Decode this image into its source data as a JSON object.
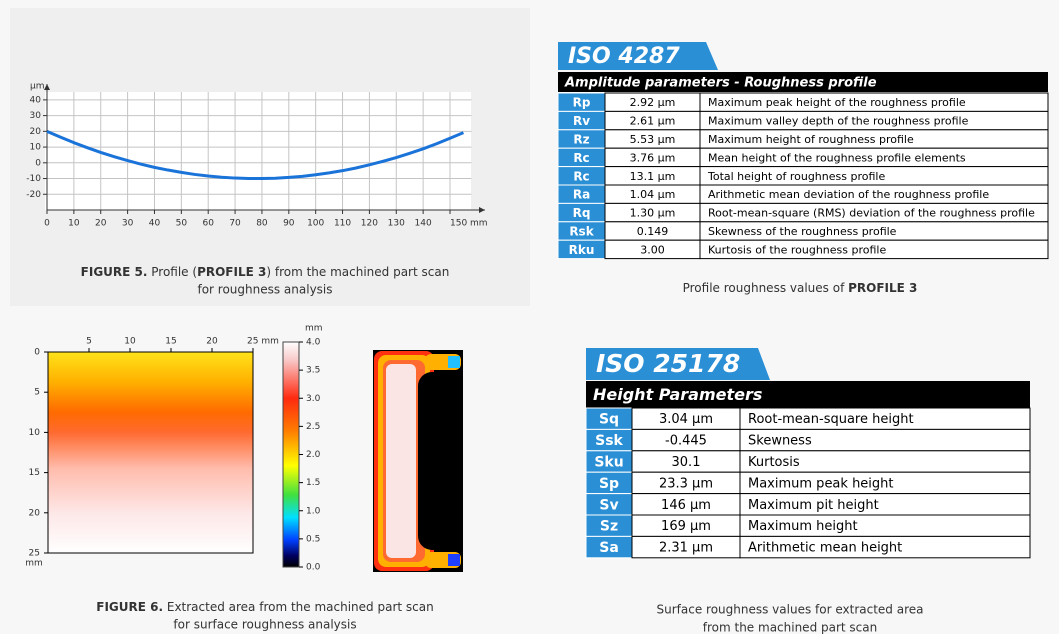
{
  "chart_data": [
    {
      "type": "line",
      "y_unit": "µm",
      "color": "#1a73d9",
      "x": [
        0,
        5,
        10,
        15,
        20,
        25,
        30,
        35,
        40,
        45,
        50,
        55,
        60,
        65,
        70,
        75,
        80,
        85,
        90,
        95,
        100,
        105,
        110,
        115,
        120,
        125,
        130,
        135,
        140,
        145,
        150,
        155
      ],
      "values": [
        20,
        16.3,
        12.8,
        9.6,
        6.6,
        3.9,
        1.4,
        -0.9,
        -2.9,
        -4.6,
        -6.1,
        -7.4,
        -8.4,
        -9.2,
        -9.7,
        -10,
        -10,
        -9.8,
        -9.3,
        -8.6,
        -7.6,
        -6.4,
        -5,
        -3.3,
        -1.3,
        0.9,
        3.3,
        6,
        8.9,
        12.1,
        15.6,
        19.2
      ],
      "xlim": [
        0,
        158
      ],
      "ylim": [
        -30,
        45
      ],
      "xticks": [
        0,
        10,
        20,
        30,
        40,
        50,
        60,
        70,
        80,
        90,
        100,
        110,
        120,
        130,
        140,
        {
          "value": 150,
          "label": "150 mm"
        }
      ],
      "yticks": [
        -20,
        -10,
        0,
        10,
        20,
        30,
        40
      ],
      "grid": true
    },
    {
      "type": "heatmap",
      "y_unit": "mm",
      "xlim": [
        0,
        25
      ],
      "ylim": [
        0,
        25
      ],
      "xticks": [
        5,
        10,
        15,
        20,
        {
          "value": 25,
          "label": "25 mm"
        }
      ],
      "yticks": [
        0,
        5,
        10,
        15,
        20,
        25
      ],
      "colorbar": {
        "unit": "mm",
        "lim": [
          0,
          4
        ],
        "ticks": [
          {
            "value": 0,
            "label": "0.0"
          },
          0.5,
          {
            "value": 1,
            "label": "1.0"
          },
          1.5,
          {
            "value": 2,
            "label": "2.0"
          },
          2.5,
          {
            "value": 3,
            "label": "3.0"
          },
          3.5,
          {
            "value": 4,
            "label": "4.0"
          }
        ]
      }
    }
  ],
  "figure5_caption": {
    "label": "FIGURE 5.",
    "text_1": " Profile (",
    "bold": "PROFILE 3",
    "text_2": ") from the machined part scan",
    "line_2": "for roughness analysis"
  },
  "figure6_caption": {
    "label": "FIGURE 6.",
    "text_1": " Extracted area from the machined part scan",
    "line_2": "for surface roughness analysis"
  },
  "tables": [
    {
      "tab": "ISO 4287",
      "header": "Amplitude parameters - Roughness profile",
      "rows": [
        [
          "Rp",
          "2.92 µm",
          "Maximum peak height of the roughness profile"
        ],
        [
          "Rv",
          "2.61 µm",
          "Maximum valley depth of the roughness profile"
        ],
        [
          "Rz",
          "5.53 µm",
          "Maximum height of roughness profile"
        ],
        [
          "Rc",
          "3.76 µm",
          "Mean height of the roughness profile elements"
        ],
        [
          "Rc",
          "13.1 µm",
          "Total height of roughness profile"
        ],
        [
          "Ra",
          "1.04 µm",
          "Arithmetic mean deviation of the roughness profile"
        ],
        [
          "Rq",
          "1.30 µm",
          "Root-mean-square (RMS) deviation of the roughness profile"
        ],
        [
          "Rsk",
          "0.149",
          "Skewness of the roughness profile"
        ],
        [
          "Rku",
          "3.00",
          "Kurtosis of the roughness profile"
        ]
      ],
      "caption": {
        "text": "Profile roughness values of ",
        "bold": "PROFILE 3"
      }
    },
    {
      "tab": "ISO 25178",
      "header": "Height Parameters",
      "rows": [
        [
          "Sq",
          "3.04 µm",
          "Root-mean-square height"
        ],
        [
          "Ssk",
          "-0.445",
          "Skewness"
        ],
        [
          "Sku",
          "30.1",
          "Kurtosis"
        ],
        [
          "Sp",
          "23.3 µm",
          "Maximum peak height"
        ],
        [
          "Sv",
          "146 µm",
          "Maximum pit height"
        ],
        [
          "Sz",
          "169 µm",
          "Maximum height"
        ],
        [
          "Sa",
          "2.31 µm",
          "Arithmetic mean height"
        ]
      ],
      "caption": {
        "line_1": "Surface roughness values for extracted area",
        "line_2": "from the machined part scan"
      }
    }
  ]
}
